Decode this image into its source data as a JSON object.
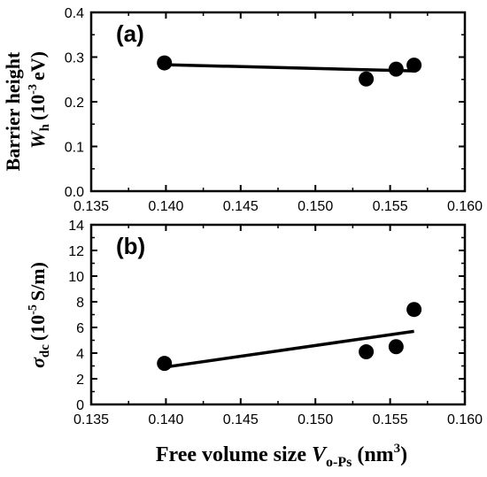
{
  "chart_data": [
    {
      "type": "scatter",
      "panel_label": "(a)",
      "ylabel": "Barrier height",
      "ylabel_symbol": "W",
      "ylabel_subscript": "h",
      "ylabel_unit_pre": "(10",
      "ylabel_unit_exp": "-3",
      "ylabel_unit_post": "eV)",
      "xlim": [
        0.135,
        0.16
      ],
      "ylim": [
        0.0,
        0.4
      ],
      "x_ticks": [
        "0.135",
        "0.140",
        "0.145",
        "0.150",
        "0.155",
        "0.160"
      ],
      "y_ticks": [
        "0.0",
        "0.1",
        "0.2",
        "0.3",
        "0.4"
      ],
      "x_tick_values": [
        0.135,
        0.14,
        0.145,
        0.15,
        0.155,
        0.16
      ],
      "y_tick_values": [
        0.0,
        0.1,
        0.2,
        0.3,
        0.4
      ],
      "points": [
        {
          "x": 0.1399,
          "y": 0.287
        },
        {
          "x": 0.1534,
          "y": 0.251
        },
        {
          "x": 0.1554,
          "y": 0.273
        },
        {
          "x": 0.1566,
          "y": 0.282
        }
      ],
      "fit_line": [
        {
          "x": 0.1399,
          "y": 0.283
        },
        {
          "x": 0.1566,
          "y": 0.269
        }
      ],
      "grid": false
    },
    {
      "type": "scatter",
      "panel_label": "(b)",
      "ylabel_symbol": "σ",
      "ylabel_subscript": "dc",
      "ylabel_unit_pre": "(10",
      "ylabel_unit_exp": "-5",
      "ylabel_unit_post": "S/m)",
      "xlim": [
        0.135,
        0.16
      ],
      "ylim": [
        0,
        14
      ],
      "x_ticks": [
        "0.135",
        "0.140",
        "0.145",
        "0.150",
        "0.155",
        "0.160"
      ],
      "y_ticks": [
        "0",
        "2",
        "4",
        "6",
        "8",
        "10",
        "12",
        "14"
      ],
      "x_tick_values": [
        0.135,
        0.14,
        0.145,
        0.15,
        0.155,
        0.16
      ],
      "y_tick_values": [
        0,
        2,
        4,
        6,
        8,
        10,
        12,
        14
      ],
      "points": [
        {
          "x": 0.1399,
          "y": 3.2
        },
        {
          "x": 0.1534,
          "y": 4.1
        },
        {
          "x": 0.1554,
          "y": 4.5
        },
        {
          "x": 0.1566,
          "y": 7.4
        }
      ],
      "fit_line": [
        {
          "x": 0.1399,
          "y": 2.9
        },
        {
          "x": 0.1566,
          "y": 5.7
        }
      ],
      "grid": false
    }
  ],
  "xlabel": {
    "text": "Free volume size",
    "symbol": "V",
    "subscript": "o-Ps",
    "unit_pre": "(nm",
    "unit_exp": "3",
    "unit_post": ")"
  }
}
